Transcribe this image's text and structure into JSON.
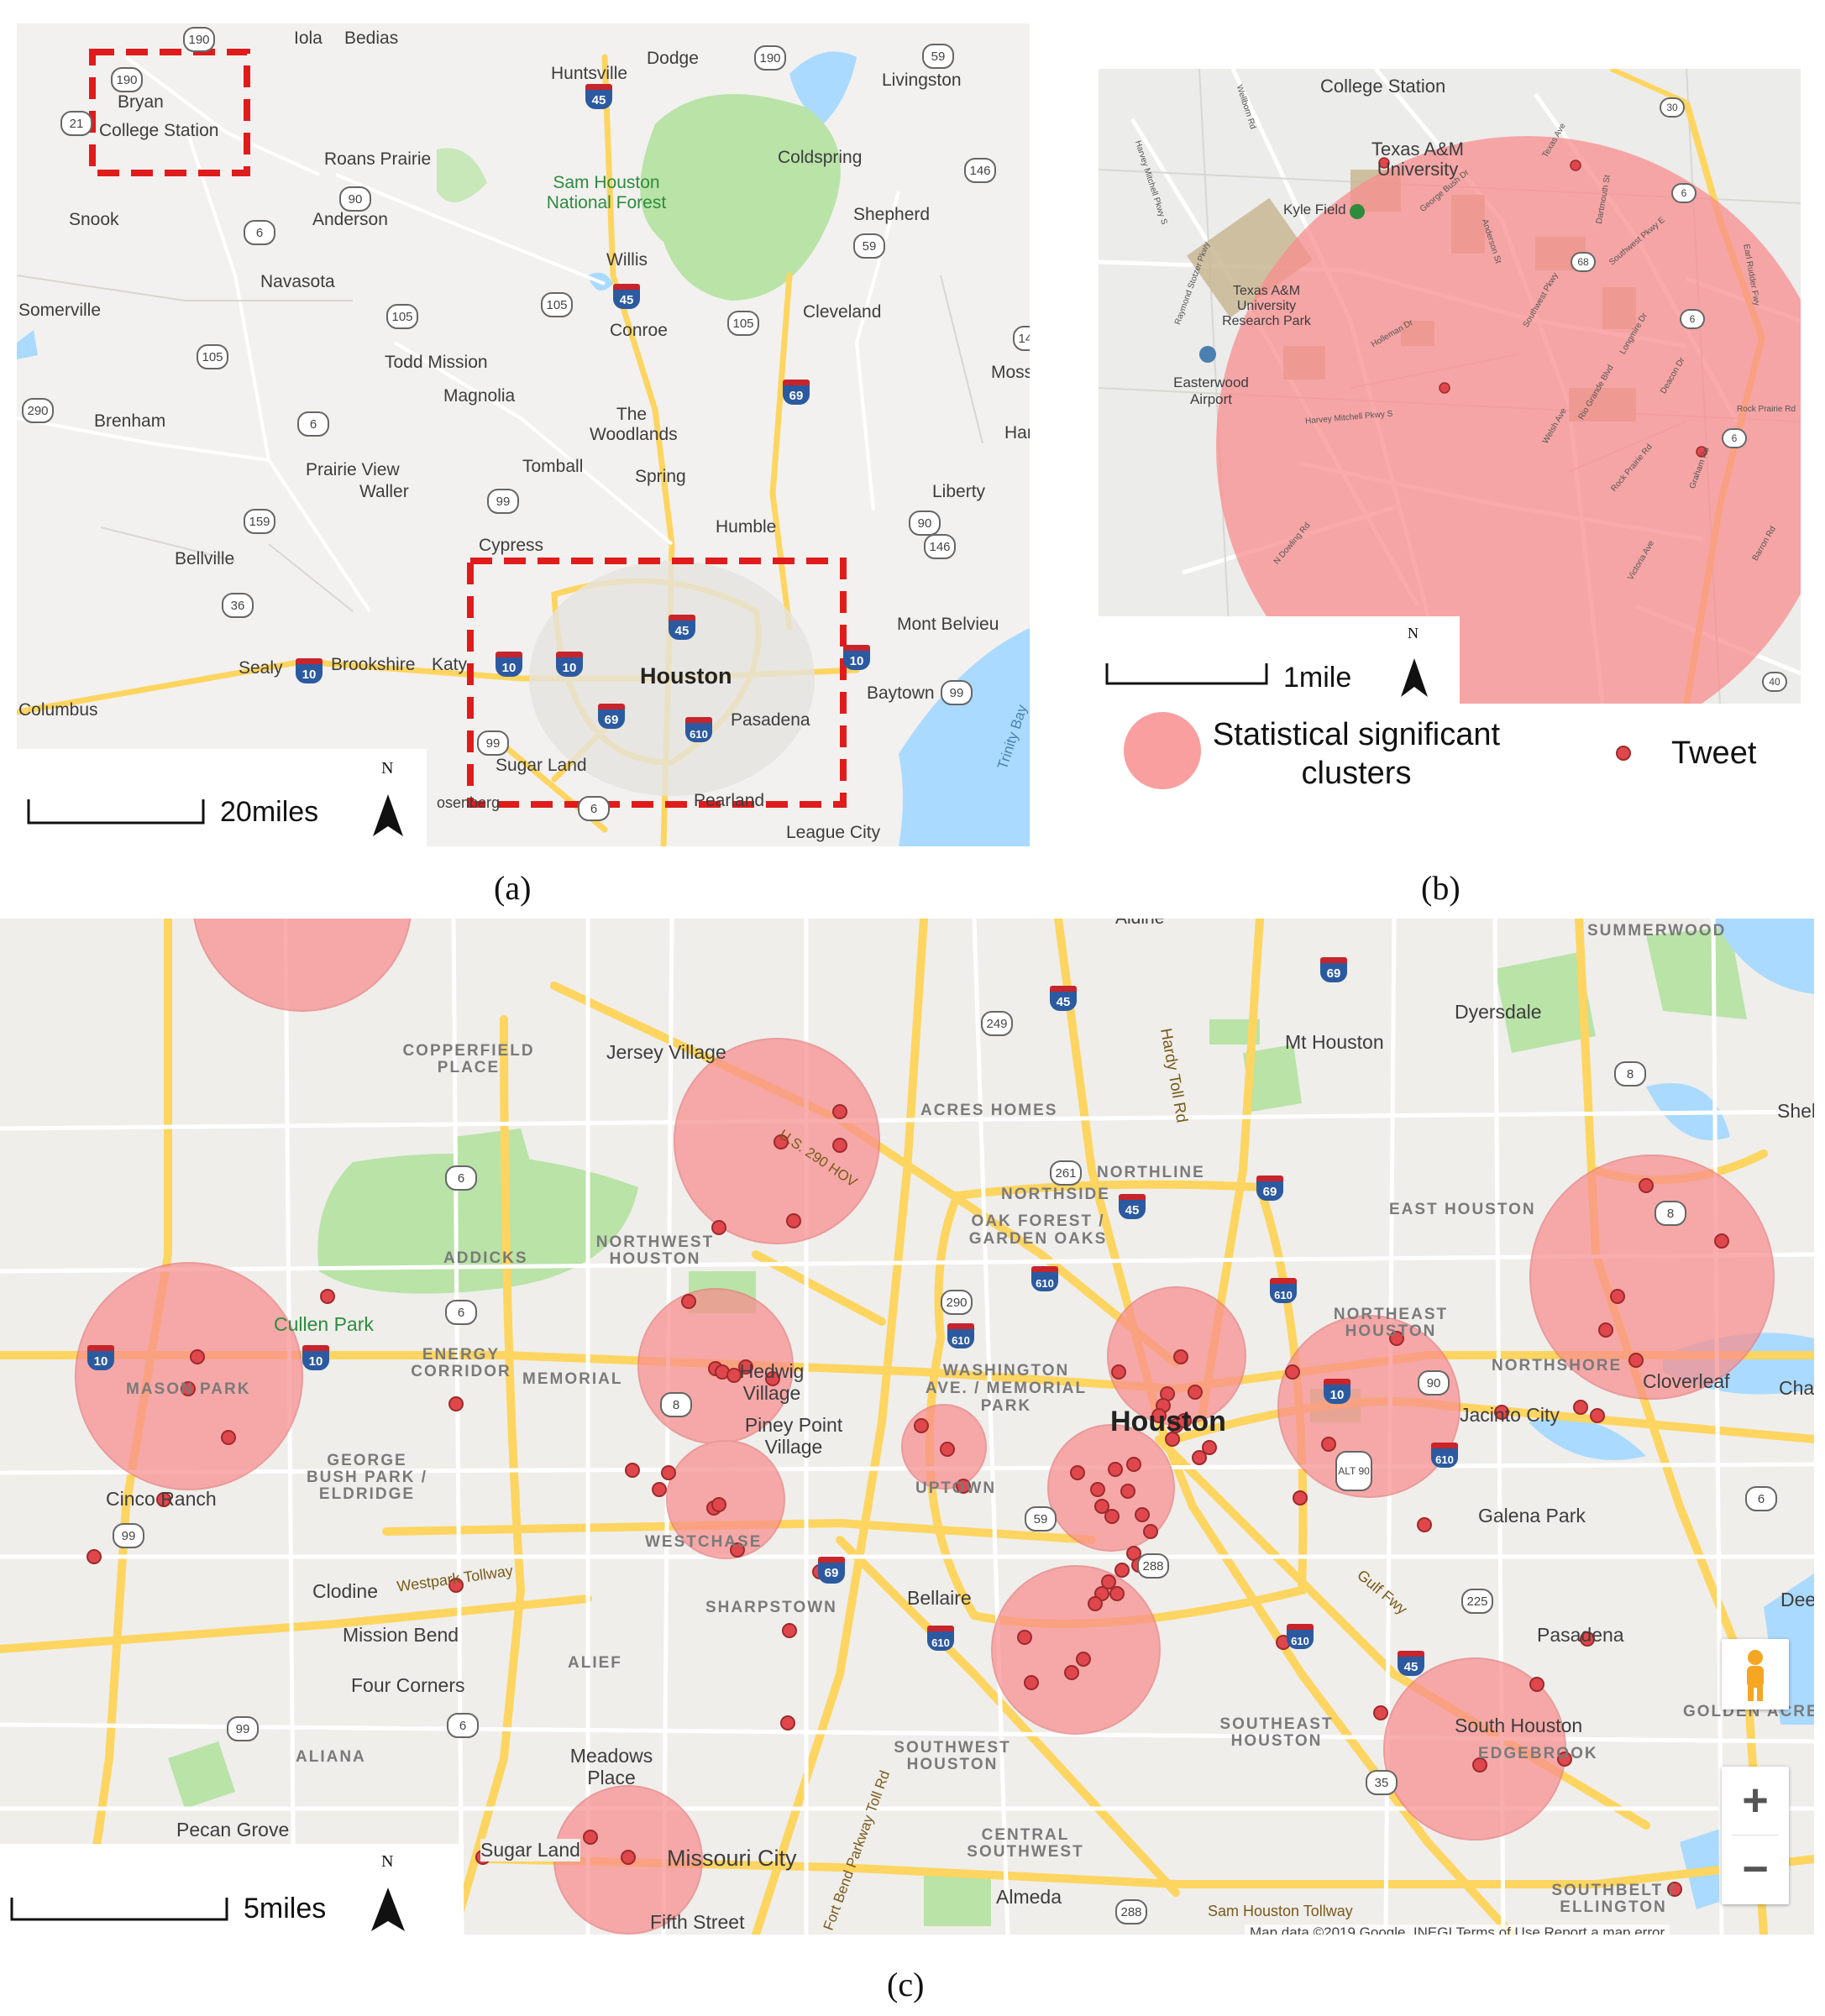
{
  "panel_a": {
    "caption": "(a)",
    "scale_label": "20miles",
    "north_label": "N",
    "cities": [
      {
        "name": "Iola"
      },
      {
        "name": "Bedias"
      },
      {
        "name": "Bryan"
      },
      {
        "name": "College Station"
      },
      {
        "name": "Huntsville"
      },
      {
        "name": "Dodge"
      },
      {
        "name": "Livingston"
      },
      {
        "name": "Roans Prairie"
      },
      {
        "name": "Coldspring"
      },
      {
        "name": "Snook"
      },
      {
        "name": "Anderson"
      },
      {
        "name": "Shepherd"
      },
      {
        "name": "Navasota"
      },
      {
        "name": "Willis"
      },
      {
        "name": "Somerville"
      },
      {
        "name": "Conroe"
      },
      {
        "name": "Cleveland"
      },
      {
        "name": "Todd Mission"
      },
      {
        "name": "Magnolia"
      },
      {
        "name": "Moss"
      },
      {
        "name": "Brenham"
      },
      {
        "name": "The Woodlands"
      },
      {
        "name": "Har"
      },
      {
        "name": "Prairie View"
      },
      {
        "name": "Tomball"
      },
      {
        "name": "Waller"
      },
      {
        "name": "Spring"
      },
      {
        "name": "Liberty"
      },
      {
        "name": "Humble"
      },
      {
        "name": "Bellville"
      },
      {
        "name": "Cypress"
      },
      {
        "name": "Mont Belvieu"
      },
      {
        "name": "Sealy"
      },
      {
        "name": "Brookshire"
      },
      {
        "name": "Katy"
      },
      {
        "name": "Baytown"
      },
      {
        "name": "Columbus"
      },
      {
        "name": "Pasadena"
      },
      {
        "name": "Sugar Land"
      },
      {
        "name": "osenberg"
      },
      {
        "name": "Pearland"
      },
      {
        "name": "League City"
      },
      {
        "name": "Trinity Bay"
      }
    ],
    "big_label": "Houston",
    "park_label": "Sam Houston National Forest",
    "shields": [
      "190",
      "190",
      "21",
      "45",
      "190",
      "59",
      "146",
      "90",
      "6",
      "59",
      "105",
      "45",
      "105",
      "105",
      "105",
      "146",
      "69",
      "290",
      "6",
      "99",
      "159",
      "90",
      "146",
      "36",
      "10",
      "45",
      "10",
      "10",
      "10",
      "69",
      "610",
      "99",
      "6",
      "99"
    ]
  },
  "panel_b": {
    "caption": "(b)",
    "scale_label": "1mile",
    "north_label": "N",
    "places": [
      {
        "name": "College Station"
      },
      {
        "name": "Texas A&M University"
      },
      {
        "name": "Kyle Field"
      },
      {
        "name": "Texas A&M University Research Park"
      },
      {
        "name": "Easterwood Airport"
      }
    ],
    "streets": [
      "Wellborn Rd",
      "Harvey Mitchell Pkwy S",
      "Raymond Stotzer Pkwy",
      "Holleman Dr",
      "Anderson St",
      "George Bush Dr",
      "Southwest Pkwy",
      "Longmire Dr",
      "Texas Ave",
      "Rio Grande Blvd",
      "Welsh Ave",
      "Deacon Dr",
      "Rock Prairie Rd",
      "Graham Rd",
      "Victoria Ave",
      "Barron Rd",
      "Dartmouth St",
      "Southwest Pkwy E",
      "Earl Rudder Fwy",
      "Harvey Mitchell Pkwy S",
      "N Dowling Rd",
      "Rock Prairie Rd"
    ],
    "route_numbers": [
      "30",
      "6",
      "68",
      "6",
      "6",
      "40"
    ],
    "legend": {
      "cluster_label": "Statistical significant clusters",
      "tweet_label": "Tweet"
    }
  },
  "panel_c": {
    "caption": "(c)",
    "scale_label": "5miles",
    "north_label": "N",
    "places": [
      {
        "name": "Aldine"
      },
      {
        "name": "SUMMERWOOD"
      },
      {
        "name": "Dyersdale"
      },
      {
        "name": "Mt Houston"
      },
      {
        "name": "COPPERFIELD PLACE"
      },
      {
        "name": "Jersey Village"
      },
      {
        "name": "ACRES HOMES"
      },
      {
        "name": "Hardy Toll Rd"
      },
      {
        "name": "Sheld"
      },
      {
        "name": "NORTHLINE"
      },
      {
        "name": "NORTHSIDE"
      },
      {
        "name": "EAST HOUSTON"
      },
      {
        "name": "OAK FOREST / GARDEN OAKS"
      },
      {
        "name": "ADDICKS"
      },
      {
        "name": "NORTHWEST HOUSTON"
      },
      {
        "name": "U.S. 290 HOV"
      },
      {
        "name": "Cullen Park"
      },
      {
        "name": "NORTHEAST HOUSTON"
      },
      {
        "name": "ENERGY CORRIDOR"
      },
      {
        "name": "MEMORIAL"
      },
      {
        "name": "Hedwig Village"
      },
      {
        "name": "WASHINGTON AVE. / MEMORIAL PARK"
      },
      {
        "name": "NORTHSHORE"
      },
      {
        "name": "Cloverleaf"
      },
      {
        "name": "Cha"
      },
      {
        "name": "MASON PARK"
      },
      {
        "name": "Piney Point Village"
      },
      {
        "name": "Houston"
      },
      {
        "name": "Jacinto City"
      },
      {
        "name": "GEORGE BUSH PARK / ELDRIDGE"
      },
      {
        "name": "UPTOWN"
      },
      {
        "name": "Galena Park"
      },
      {
        "name": "Cinco Ranch"
      },
      {
        "name": "WESTCHASE"
      },
      {
        "name": "Clodine"
      },
      {
        "name": "Westpark Tollway"
      },
      {
        "name": "SHARPSTOWN"
      },
      {
        "name": "Bellaire"
      },
      {
        "name": "Gulf Fwy"
      },
      {
        "name": "Deer"
      },
      {
        "name": "Mission Bend"
      },
      {
        "name": "ALIEF"
      },
      {
        "name": "Pasadena"
      },
      {
        "name": "Four Corners"
      },
      {
        "name": "GOLDEN ACRES"
      },
      {
        "name": "SOUTHEAST HOUSTON"
      },
      {
        "name": "South Houston"
      },
      {
        "name": "ALIANA"
      },
      {
        "name": "Meadows Place"
      },
      {
        "name": "SOUTHWEST HOUSTON"
      },
      {
        "name": "EDGEBROOK"
      },
      {
        "name": "Pecan Grove"
      },
      {
        "name": "Missouri City"
      },
      {
        "name": "CENTRAL SOUTHWEST"
      },
      {
        "name": "Sam Houston Tollway"
      },
      {
        "name": "Almeda"
      },
      {
        "name": "SOUTHBELT / ELLINGTON"
      },
      {
        "name": "Fifth Street"
      },
      {
        "name": "Fort Bend Parkway Toll Rd"
      },
      {
        "name": "Sugar Land"
      }
    ],
    "footer": "Map data ©2019 Google, INEGI   Terms of Use   Report a map error",
    "zoom_in": "+",
    "zoom_out": "−",
    "shields": [
      "45",
      "69",
      "249",
      "261",
      "45",
      "69",
      "290",
      "6",
      "610",
      "610",
      "610",
      "6",
      "10",
      "10",
      "10",
      "90",
      "ALT 90",
      "610",
      "8",
      "8",
      "8",
      "59",
      "288",
      "69",
      "610",
      "610",
      "225",
      "45",
      "6",
      "99",
      "99",
      "6",
      "69",
      "35",
      "288"
    ]
  },
  "colors": {
    "cluster_fill": "#f88e8e",
    "tweet_fill": "#e0474c",
    "highway": "#fdd560",
    "water": "#aadaff",
    "park": "#b9e3a7",
    "dashed_box": "#e01b1b"
  }
}
